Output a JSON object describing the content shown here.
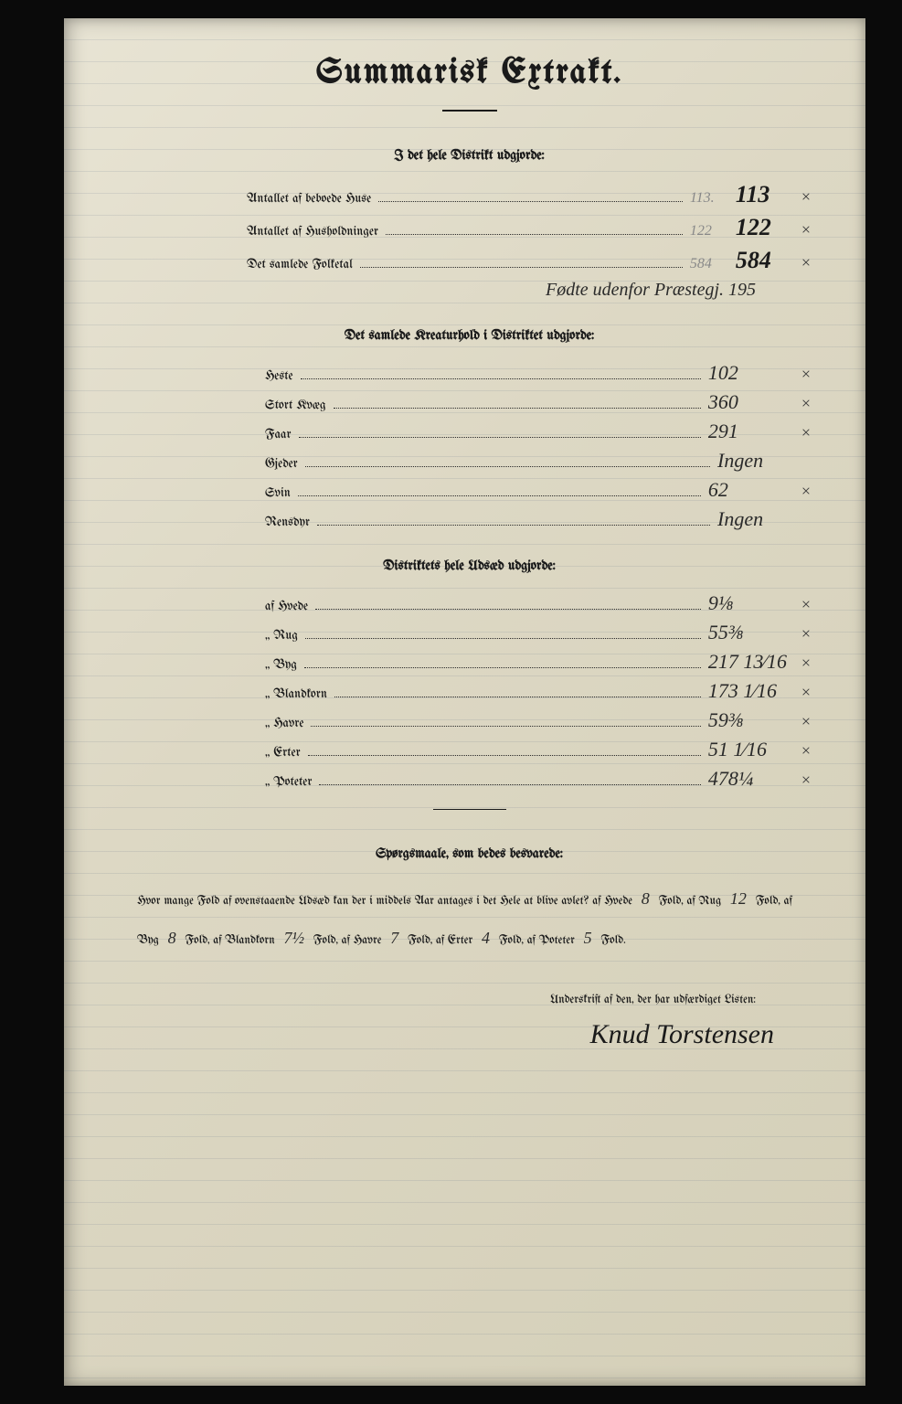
{
  "title": "Summarisk Extrakt.",
  "section1": {
    "heading": "I det hele Distrikt udgjorde:",
    "rows": [
      {
        "label": "Antallet af beboede Huse",
        "pencil": "113.",
        "bold": "113",
        "check": "×"
      },
      {
        "label": "Antallet af Husholdninger",
        "pencil": "122",
        "bold": "122",
        "check": "×"
      },
      {
        "label": "Det samlede Folketal",
        "pencil": "584",
        "bold": "584",
        "check": "×"
      }
    ],
    "annotation": "Fødte udenfor Præstegj. 195"
  },
  "section2": {
    "heading": "Det samlede Kreaturhold i Distriktet udgjorde:",
    "rows": [
      {
        "label": "Heste",
        "value": "102",
        "check": "×"
      },
      {
        "label": "Stort Kvæg",
        "value": "360",
        "check": "×"
      },
      {
        "label": "Faar",
        "value": "291",
        "check": "×"
      },
      {
        "label": "Gjeder",
        "value": "Ingen",
        "check": ""
      },
      {
        "label": "Svin",
        "value": "62",
        "check": "×"
      },
      {
        "label": "Rensdyr",
        "value": "Ingen",
        "check": ""
      }
    ]
  },
  "section3": {
    "heading": "Distriktets hele Udsæd udgjorde:",
    "rows": [
      {
        "label": "af Hvede",
        "value": "9⅛",
        "check": "×"
      },
      {
        "label": "„ Rug",
        "value": "55⅜",
        "check": "×"
      },
      {
        "label": "„ Byg",
        "value": "217 13⁄16",
        "check": "×"
      },
      {
        "label": "„ Blandkorn",
        "value": "173 1⁄16",
        "check": "×"
      },
      {
        "label": "„ Havre",
        "value": "59⅜",
        "check": "×"
      },
      {
        "label": "„ Erter",
        "value": "51 1⁄16",
        "check": "×"
      },
      {
        "label": "„ Poteter",
        "value": "478¼",
        "check": "×"
      }
    ]
  },
  "questions": {
    "heading": "Spørgsmaale, som bedes besvarede:",
    "lead": "Hvor mange Fold af ovenstaaende Udsæd kan der i middels Aar antages i det Hele at blive avlet?",
    "items": [
      {
        "crop": "af Hvede",
        "val": "8",
        "unit": "Fold,"
      },
      {
        "crop": "af Rug",
        "val": "12",
        "unit": "Fold,"
      },
      {
        "crop": "af Byg",
        "val": "8",
        "unit": "Fold,"
      },
      {
        "crop": "af Blandkorn",
        "val": "7½",
        "unit": "Fold,"
      },
      {
        "crop": "af Havre",
        "val": "7",
        "unit": "Fold,"
      },
      {
        "crop": "af Erter",
        "val": "4",
        "unit": "Fold,"
      },
      {
        "crop": "af Poteter",
        "val": "5",
        "unit": "Fold."
      }
    ]
  },
  "signature": {
    "label": "Underskrift af den, der har udfærdiget Listen:",
    "name": "Knud Torstensen"
  }
}
